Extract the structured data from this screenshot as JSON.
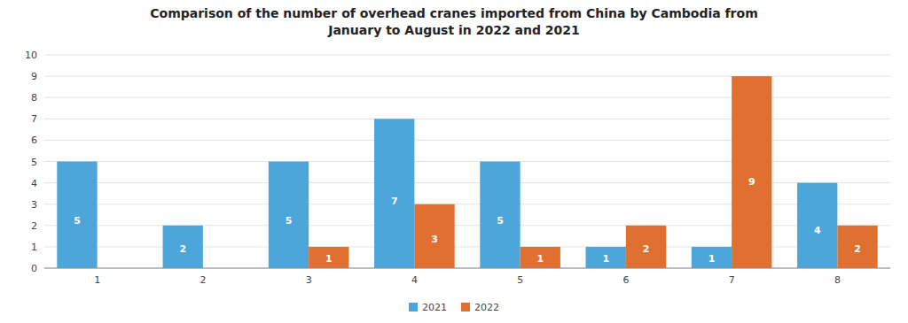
{
  "chart_data": {
    "type": "bar",
    "title": "Comparison of the number of overhead cranes imported from China by Cambodia from\nJanuary to August in 2022 and 2021",
    "categories": [
      "1",
      "2",
      "3",
      "4",
      "5",
      "6",
      "7",
      "8"
    ],
    "series": [
      {
        "name": "2021",
        "color": "#4da6d9",
        "values": [
          5,
          2,
          5,
          7,
          5,
          1,
          1,
          4
        ]
      },
      {
        "name": "2022",
        "color": "#e07030",
        "values": [
          0,
          0,
          1,
          3,
          1,
          2,
          9,
          2
        ]
      }
    ],
    "ylim": [
      0,
      10
    ],
    "yticks": [
      0,
      1,
      2,
      3,
      4,
      5,
      6,
      7,
      8,
      9,
      10
    ],
    "grid": true,
    "legend": "bottom",
    "data_labels": true
  }
}
